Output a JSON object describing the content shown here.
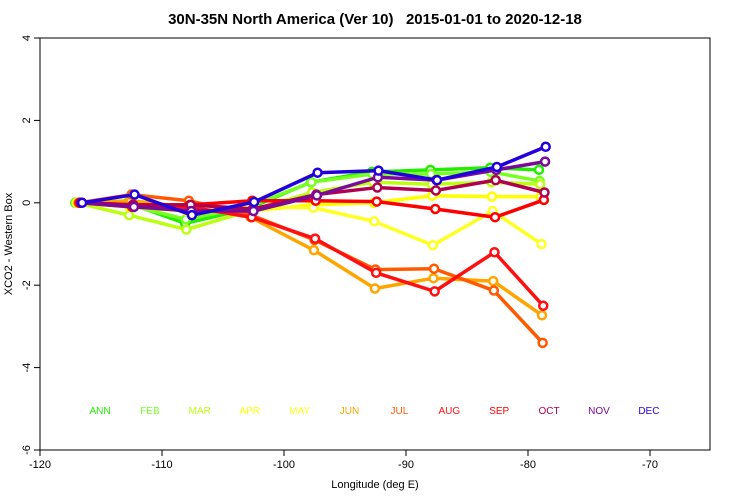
{
  "chart_data": {
    "type": "line",
    "title": "30N-35N North America (Ver 10)   2015-01-01 to 2020-12-18",
    "xlabel": "Longitude (deg E)",
    "ylabel": "XCO2 - Western Box",
    "xlim": [
      -120,
      -65
    ],
    "ylim": [
      -6,
      4
    ],
    "xticks": [
      -120,
      -110,
      -100,
      -90,
      -80,
      -70
    ],
    "yticks": [
      -6,
      -4,
      -2,
      0,
      2,
      4
    ],
    "grid": false,
    "legend_placement": "bottom (inside plot, single row)",
    "x": [
      -116.8,
      -112.5,
      -107.8,
      -102.7,
      -97.5,
      -92.5,
      -87.7,
      -82.8,
      -78.8
    ],
    "series": [
      {
        "name": "ANN",
        "color": "#22ee00",
        "values": [
          0,
          0.0,
          -0.5,
          -0.15,
          0.5,
          0.75,
          0.8,
          0.85,
          0.8
        ]
      },
      {
        "name": "FEB",
        "color": "#77ff22",
        "values": [
          0,
          -0.05,
          -0.4,
          -0.1,
          0.5,
          0.7,
          0.7,
          0.75,
          0.53
        ]
      },
      {
        "name": "MAR",
        "color": "#bbff11",
        "values": [
          0,
          -0.3,
          -0.65,
          -0.2,
          0.25,
          0.5,
          0.45,
          0.5,
          0.45
        ]
      },
      {
        "name": "APR",
        "color": "#ffff00",
        "values": [
          0,
          -0.1,
          -0.2,
          -0.2,
          -0.05,
          0.0,
          0.17,
          0.15,
          0.15
        ]
      },
      {
        "name": "MAY",
        "color": "#ffff22",
        "values": [
          0,
          -0.05,
          -0.15,
          -0.1,
          -0.12,
          -0.45,
          -1.03,
          -0.2,
          -1.0
        ]
      },
      {
        "name": "JUN",
        "color": "#ffa500",
        "values": [
          0,
          0.05,
          -0.1,
          -0.35,
          -1.15,
          -2.08,
          -1.83,
          -1.9,
          -2.73
        ]
      },
      {
        "name": "JUL",
        "color": "#ff5a00",
        "values": [
          0,
          0.2,
          0.05,
          -0.3,
          -0.9,
          -1.62,
          -1.6,
          -2.13,
          -3.4
        ]
      },
      {
        "name": "AUG",
        "color": "#ff1010",
        "values": [
          0,
          -0.1,
          -0.1,
          -0.35,
          -0.87,
          -1.7,
          -2.15,
          -1.2,
          -2.5
        ]
      },
      {
        "name": "SEP",
        "color": "#ff0000",
        "values": [
          0,
          -0.05,
          -0.05,
          0.05,
          0.05,
          0.03,
          -0.15,
          -0.35,
          0.07
        ]
      },
      {
        "name": "OCT",
        "color": "#b00050",
        "values": [
          0,
          -0.05,
          -0.05,
          -0.15,
          0.2,
          0.37,
          0.3,
          0.55,
          0.25
        ]
      },
      {
        "name": "NOV",
        "color": "#7a0a9a",
        "values": [
          0,
          -0.1,
          -0.2,
          -0.2,
          0.18,
          0.62,
          0.55,
          0.8,
          1.0
        ]
      },
      {
        "name": "DEC",
        "color": "#2200dd",
        "values": [
          0,
          0.2,
          -0.3,
          0.02,
          0.73,
          0.78,
          0.55,
          0.87,
          1.36
        ]
      }
    ]
  }
}
